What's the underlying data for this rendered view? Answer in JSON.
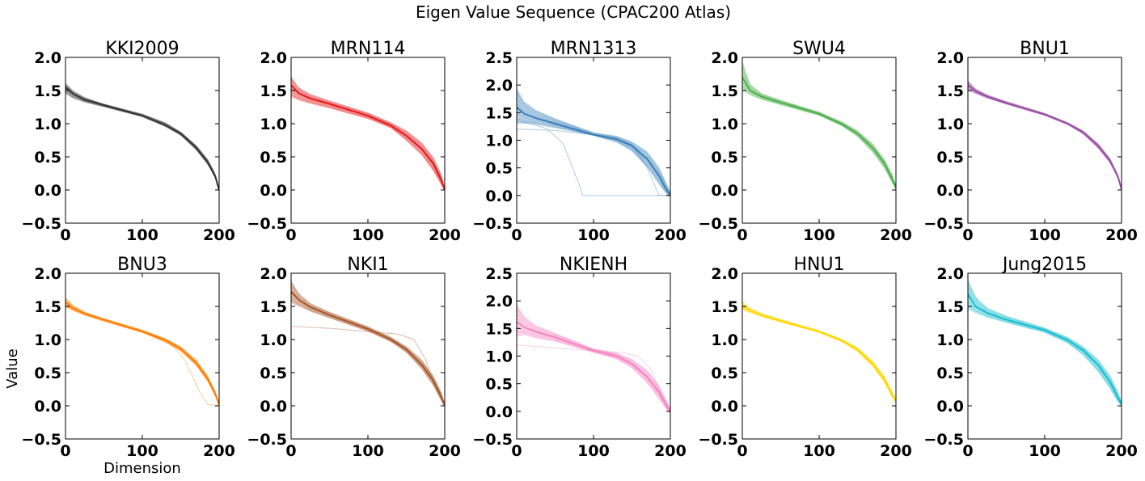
{
  "figure": {
    "title": "Eigen Value Sequence (CPAC200 Atlas)",
    "ylabel": "Value",
    "xlabel": "Dimension"
  },
  "chart_data": [
    {
      "type": "line",
      "title": "KKI2009",
      "color": "#333333",
      "xlim": [
        0,
        200
      ],
      "ylim": [
        -0.5,
        2.0
      ],
      "xticks": [
        0,
        100,
        200
      ],
      "yticks": [
        "−0.5",
        "0.0",
        "0.5",
        "1.0",
        "1.5",
        "2.0"
      ],
      "ytick_values": [
        -0.5,
        0,
        0.5,
        1,
        1.5,
        2
      ],
      "x": [
        0,
        10,
        25,
        50,
        100,
        130,
        150,
        170,
        185,
        195,
        200
      ],
      "y_min": [
        1.45,
        1.38,
        1.32,
        1.25,
        1.1,
        0.95,
        0.82,
        0.6,
        0.38,
        0.18,
        0.0
      ],
      "y_max": [
        1.62,
        1.5,
        1.4,
        1.3,
        1.15,
        1.02,
        0.88,
        0.68,
        0.47,
        0.25,
        0.03
      ],
      "y": [
        1.55,
        1.45,
        1.36,
        1.28,
        1.12,
        0.98,
        0.85,
        0.64,
        0.42,
        0.2,
        0.0
      ],
      "outliers": []
    },
    {
      "type": "line",
      "title": "MRN114",
      "color": "#e41a1c",
      "xlim": [
        0,
        200
      ],
      "ylim": [
        -0.5,
        2.0
      ],
      "xticks": [
        0,
        100,
        200
      ],
      "yticks": [
        "−0.5",
        "0.0",
        "0.5",
        "1.0",
        "1.5",
        "2.0"
      ],
      "ytick_values": [
        -0.5,
        0,
        0.5,
        1,
        1.5,
        2
      ],
      "x": [
        0,
        10,
        25,
        50,
        100,
        130,
        150,
        170,
        185,
        195,
        200
      ],
      "y_min": [
        1.4,
        1.35,
        1.3,
        1.23,
        1.07,
        0.93,
        0.74,
        0.52,
        0.28,
        0.08,
        -0.02
      ],
      "y_max": [
        1.72,
        1.55,
        1.45,
        1.35,
        1.17,
        1.02,
        0.9,
        0.72,
        0.5,
        0.25,
        0.04
      ],
      "y": [
        1.58,
        1.46,
        1.38,
        1.3,
        1.12,
        0.97,
        0.82,
        0.62,
        0.4,
        0.16,
        0.0
      ],
      "outliers": []
    },
    {
      "type": "line",
      "title": "MRN1313",
      "color": "#377eb8",
      "xlim": [
        0,
        200
      ],
      "ylim": [
        -0.5,
        2.5
      ],
      "xticks": [
        0,
        100,
        200
      ],
      "yticks": [
        "−0.5",
        "0.0",
        "0.5",
        "1.0",
        "1.5",
        "2.0",
        "2.5"
      ],
      "ytick_values": [
        -0.5,
        0,
        0.5,
        1,
        1.5,
        2,
        2.5
      ],
      "x": [
        0,
        10,
        25,
        50,
        100,
        130,
        150,
        170,
        185,
        195,
        200
      ],
      "y_min": [
        1.3,
        1.3,
        1.28,
        1.22,
        1.08,
        0.96,
        0.8,
        0.5,
        0.2,
        0.02,
        -0.02
      ],
      "y_max": [
        1.95,
        1.7,
        1.55,
        1.4,
        1.14,
        1.08,
        0.98,
        0.8,
        0.52,
        0.22,
        0.06
      ],
      "y": [
        1.6,
        1.48,
        1.4,
        1.3,
        1.1,
        1.02,
        0.9,
        0.66,
        0.36,
        0.1,
        0.0
      ],
      "outliers": [
        {
          "x": [
            0,
            20,
            40,
            60,
            70,
            80,
            86,
            90,
            120,
            160,
            200
          ],
          "y": [
            1.35,
            1.3,
            1.2,
            0.95,
            0.6,
            0.25,
            0.0,
            0.0,
            0.0,
            0.0,
            0.0
          ]
        },
        {
          "x": [
            0,
            50,
            100,
            130,
            150,
            170,
            185,
            200
          ],
          "y": [
            1.2,
            1.18,
            1.1,
            1.03,
            0.92,
            0.5,
            0.0,
            0.0
          ]
        }
      ]
    },
    {
      "type": "line",
      "title": "SWU4",
      "color": "#4daf4a",
      "xlim": [
        0,
        200
      ],
      "ylim": [
        -0.5,
        2.0
      ],
      "xticks": [
        0,
        100,
        200
      ],
      "yticks": [
        "−0.5",
        "0.0",
        "0.5",
        "1.0",
        "1.5",
        "2.0"
      ],
      "ytick_values": [
        -0.5,
        0,
        0.5,
        1,
        1.5,
        2
      ],
      "x": [
        0,
        10,
        25,
        50,
        100,
        130,
        150,
        170,
        185,
        195,
        200
      ],
      "y_min": [
        1.5,
        1.43,
        1.36,
        1.28,
        1.12,
        0.96,
        0.8,
        0.56,
        0.32,
        0.1,
        0.0
      ],
      "y_max": [
        1.95,
        1.6,
        1.46,
        1.36,
        1.18,
        1.03,
        0.9,
        0.7,
        0.47,
        0.24,
        0.08
      ],
      "y": [
        1.7,
        1.5,
        1.41,
        1.32,
        1.15,
        0.99,
        0.85,
        0.63,
        0.4,
        0.17,
        0.04
      ],
      "outliers": []
    },
    {
      "type": "line",
      "title": "BNU1",
      "color": "#984ea3",
      "xlim": [
        0,
        200
      ],
      "ylim": [
        -0.5,
        2.0
      ],
      "xticks": [
        0,
        100,
        200
      ],
      "yticks": [
        "−0.5",
        "0.0",
        "0.5",
        "1.0",
        "1.5",
        "2.0"
      ],
      "ytick_values": [
        -0.5,
        0,
        0.5,
        1,
        1.5,
        2
      ],
      "x": [
        0,
        10,
        25,
        50,
        100,
        130,
        150,
        170,
        185,
        195,
        200
      ],
      "y_min": [
        1.5,
        1.45,
        1.38,
        1.29,
        1.12,
        0.98,
        0.84,
        0.62,
        0.4,
        0.18,
        0.0
      ],
      "y_max": [
        1.66,
        1.53,
        1.44,
        1.34,
        1.16,
        1.02,
        0.9,
        0.7,
        0.48,
        0.24,
        0.03
      ],
      "y": [
        1.58,
        1.49,
        1.41,
        1.31,
        1.14,
        1.0,
        0.87,
        0.66,
        0.44,
        0.21,
        0.01
      ],
      "outliers": []
    },
    {
      "type": "line",
      "title": "BNU3",
      "color": "#ff7f00",
      "xlim": [
        0,
        200
      ],
      "ylim": [
        -0.5,
        2.0
      ],
      "xticks": [
        0,
        100,
        200
      ],
      "yticks": [
        "−0.5",
        "0.0",
        "0.5",
        "1.0",
        "1.5",
        "2.0"
      ],
      "ytick_values": [
        -0.5,
        0,
        0.5,
        1,
        1.5,
        2
      ],
      "x": [
        0,
        10,
        25,
        50,
        100,
        130,
        150,
        170,
        185,
        195,
        200
      ],
      "y_min": [
        1.48,
        1.43,
        1.36,
        1.27,
        1.1,
        0.96,
        0.82,
        0.6,
        0.36,
        0.14,
        0.0
      ],
      "y_max": [
        1.64,
        1.52,
        1.42,
        1.32,
        1.15,
        1.02,
        0.9,
        0.7,
        0.46,
        0.22,
        0.04
      ],
      "y": [
        1.56,
        1.47,
        1.39,
        1.3,
        1.12,
        0.99,
        0.86,
        0.65,
        0.41,
        0.18,
        0.02
      ],
      "outliers": [
        {
          "x": [
            0,
            50,
            100,
            140,
            155,
            165,
            175,
            185,
            200
          ],
          "y": [
            1.5,
            1.3,
            1.12,
            0.9,
            0.7,
            0.45,
            0.2,
            0.02,
            0.0
          ]
        }
      ]
    },
    {
      "type": "line",
      "title": "NKI1",
      "color": "#a65628",
      "xlim": [
        0,
        200
      ],
      "ylim": [
        -0.5,
        2.0
      ],
      "xticks": [
        0,
        100,
        200
      ],
      "yticks": [
        "−0.5",
        "0.0",
        "0.5",
        "1.0",
        "1.5",
        "2.0"
      ],
      "ytick_values": [
        -0.5,
        0,
        0.5,
        1,
        1.5,
        2
      ],
      "x": [
        0,
        10,
        25,
        50,
        100,
        130,
        150,
        170,
        185,
        195,
        200
      ],
      "y_min": [
        1.55,
        1.5,
        1.42,
        1.32,
        1.12,
        0.96,
        0.8,
        0.55,
        0.3,
        0.08,
        -0.02
      ],
      "y_max": [
        1.9,
        1.7,
        1.55,
        1.42,
        1.2,
        1.04,
        0.9,
        0.7,
        0.46,
        0.22,
        0.04
      ],
      "y": [
        1.72,
        1.6,
        1.49,
        1.37,
        1.16,
        1.0,
        0.85,
        0.62,
        0.38,
        0.15,
        0.0
      ],
      "outliers": [
        {
          "x": [
            0,
            50,
            100,
            140,
            160,
            175,
            185,
            200
          ],
          "y": [
            1.2,
            1.17,
            1.12,
            1.08,
            1.0,
            0.7,
            0.35,
            0.0
          ]
        }
      ]
    },
    {
      "type": "line",
      "title": "NKIENH",
      "color": "#f781bf",
      "xlim": [
        0,
        200
      ],
      "ylim": [
        -0.5,
        2.5
      ],
      "xticks": [
        0,
        100,
        200
      ],
      "yticks": [
        "−0.5",
        "0.0",
        "0.5",
        "1.0",
        "1.5",
        "2.0",
        "2.5"
      ],
      "ytick_values": [
        -0.5,
        0,
        0.5,
        1,
        1.5,
        2,
        2.5
      ],
      "x": [
        0,
        10,
        25,
        50,
        100,
        130,
        150,
        170,
        185,
        195,
        200
      ],
      "y_min": [
        1.35,
        1.38,
        1.32,
        1.26,
        1.06,
        0.94,
        0.78,
        0.5,
        0.22,
        0.02,
        -0.05
      ],
      "y_max": [
        1.95,
        1.72,
        1.56,
        1.42,
        1.14,
        1.06,
        0.95,
        0.75,
        0.48,
        0.2,
        0.06
      ],
      "y": [
        1.62,
        1.52,
        1.44,
        1.34,
        1.1,
        1.0,
        0.86,
        0.62,
        0.35,
        0.1,
        0.0
      ],
      "outliers": [
        {
          "x": [
            0,
            50,
            100,
            140,
            160,
            175,
            185,
            200
          ],
          "y": [
            1.2,
            1.15,
            1.1,
            1.06,
            0.98,
            0.75,
            0.4,
            0.0
          ]
        }
      ]
    },
    {
      "type": "line",
      "title": "HNU1",
      "color": "#ffd700",
      "xlim": [
        0,
        200
      ],
      "ylim": [
        -0.5,
        2.0
      ],
      "xticks": [
        0,
        100,
        200
      ],
      "yticks": [
        "−0.5",
        "0.0",
        "0.5",
        "1.0",
        "1.5",
        "2.0"
      ],
      "ytick_values": [
        -0.5,
        0,
        0.5,
        1,
        1.5,
        2
      ],
      "x": [
        0,
        10,
        25,
        50,
        100,
        130,
        150,
        170,
        185,
        195,
        200
      ],
      "y_min": [
        1.44,
        1.4,
        1.34,
        1.26,
        1.1,
        0.96,
        0.81,
        0.58,
        0.34,
        0.12,
        0.04
      ],
      "y_max": [
        1.58,
        1.48,
        1.4,
        1.31,
        1.14,
        1.01,
        0.88,
        0.68,
        0.45,
        0.22,
        0.1
      ],
      "y": [
        1.5,
        1.44,
        1.37,
        1.28,
        1.12,
        0.98,
        0.85,
        0.63,
        0.4,
        0.17,
        0.07
      ],
      "outliers": []
    },
    {
      "type": "line",
      "title": "Jung2015",
      "color": "#17becf",
      "xlim": [
        0,
        200
      ],
      "ylim": [
        -0.5,
        2.0
      ],
      "xticks": [
        0,
        100,
        200
      ],
      "yticks": [
        "−0.5",
        "0.0",
        "0.5",
        "1.0",
        "1.5",
        "2.0"
      ],
      "ytick_values": [
        -0.5,
        0,
        0.5,
        1,
        1.5,
        2
      ],
      "x": [
        0,
        10,
        25,
        50,
        100,
        130,
        150,
        170,
        185,
        195,
        200
      ],
      "y_min": [
        1.45,
        1.4,
        1.33,
        1.25,
        1.1,
        0.94,
        0.76,
        0.5,
        0.25,
        0.05,
        0.0
      ],
      "y_max": [
        1.92,
        1.65,
        1.48,
        1.36,
        1.18,
        1.04,
        0.9,
        0.7,
        0.46,
        0.22,
        0.06
      ],
      "y": [
        1.68,
        1.5,
        1.4,
        1.3,
        1.14,
        0.99,
        0.84,
        0.61,
        0.36,
        0.13,
        0.02
      ],
      "outliers": []
    }
  ]
}
